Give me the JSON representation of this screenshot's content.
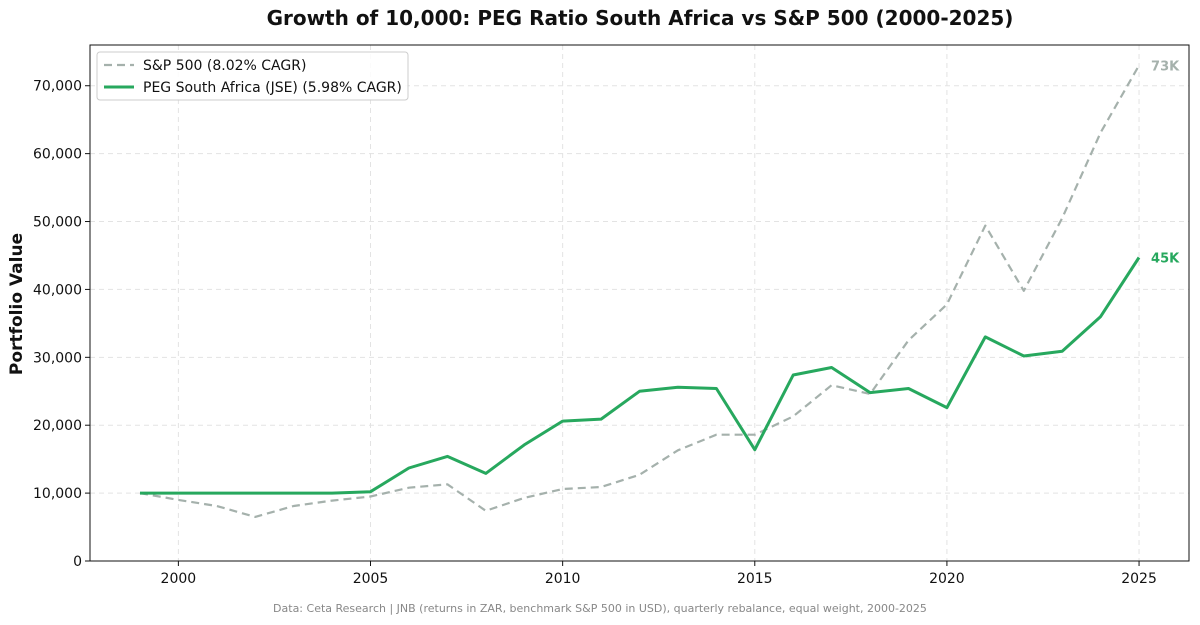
{
  "chart_data": {
    "type": "line",
    "title": "Growth of 10,000: PEG Ratio South Africa vs S&P 500 (2000-2025)",
    "xlabel": "",
    "ylabel": "Portfolio Value",
    "xlim": [
      1997.7,
      2026.3
    ],
    "ylim": [
      0,
      76000
    ],
    "x_ticks": [
      2000,
      2005,
      2010,
      2015,
      2020,
      2025
    ],
    "y_ticks": [
      0,
      10000,
      20000,
      30000,
      40000,
      50000,
      60000,
      70000
    ],
    "y_tick_labels": [
      "0",
      "10,000",
      "20,000",
      "30,000",
      "40,000",
      "50,000",
      "60,000",
      "70,000"
    ],
    "grid": true,
    "legend_position": "top-left",
    "x": [
      1999,
      2000,
      2001,
      2002,
      2003,
      2004,
      2005,
      2006,
      2007,
      2008,
      2009,
      2010,
      2011,
      2012,
      2013,
      2014,
      2015,
      2016,
      2017,
      2018,
      2019,
      2020,
      2021,
      2022,
      2023,
      2024,
      2025
    ],
    "series": [
      {
        "name": "S&P 500 (8.02% CAGR)",
        "color": "#a5b1ac",
        "style": "dashed",
        "end_label": "73K",
        "values": [
          10000,
          9000,
          8100,
          6500,
          8100,
          8900,
          9500,
          10800,
          11300,
          7400,
          9300,
          10600,
          10900,
          12700,
          16300,
          18600,
          18600,
          21300,
          25900,
          24600,
          32500,
          37800,
          49400,
          39800,
          50500,
          63100,
          73000
        ]
      },
      {
        "name": "PEG South Africa (JSE) (5.98% CAGR)",
        "color": "#27a85e",
        "style": "solid",
        "end_label": "45K",
        "values": [
          10000,
          10000,
          10000,
          10000,
          10000,
          10000,
          10200,
          13700,
          15400,
          12900,
          17100,
          20600,
          20900,
          25000,
          25600,
          25400,
          16400,
          27400,
          28500,
          24800,
          25400,
          22600,
          33000,
          30200,
          30900,
          36000,
          44700
        ]
      }
    ],
    "footnote": "Data: Ceta Research | JNB (returns in ZAR, benchmark S&P 500 in USD), quarterly rebalance, equal weight, 2000-2025"
  }
}
